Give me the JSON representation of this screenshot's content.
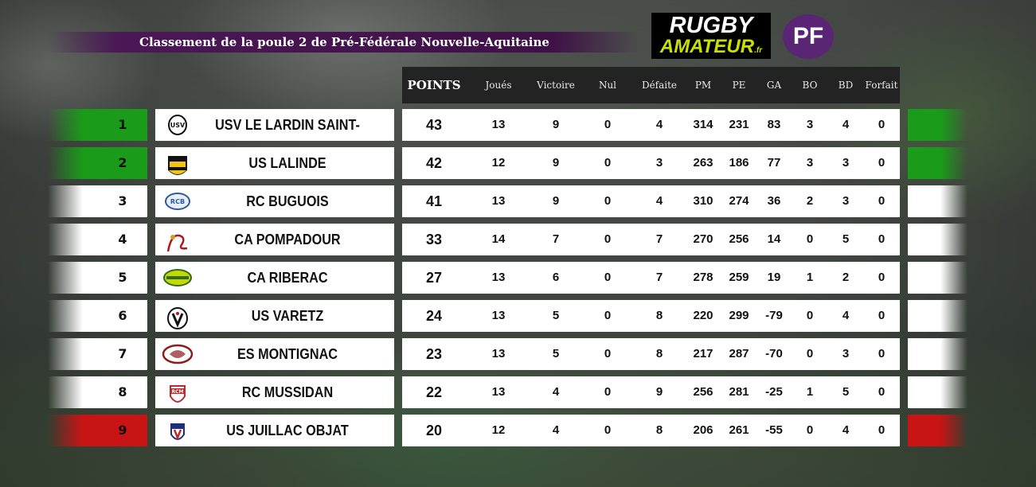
{
  "title": "Classement de la poule 2 de Pré-Fédérale Nouvelle-Aquitaine",
  "logos": {
    "rugby_line1": "RUGBY",
    "rugby_line2": "AMATEUR",
    "rugby_suffix": ".fr",
    "pf": "PF"
  },
  "colors": {
    "green": "#1a9b1a",
    "red": "#c81414",
    "white": "#ffffff",
    "title_bg": "#4b1856",
    "header_bg": "#232323"
  },
  "headers": [
    "POINTS",
    "Joués",
    "Victoire",
    "Nul",
    "Défaite",
    "PM",
    "PE",
    "GA",
    "BO",
    "BD",
    "Forfait"
  ],
  "rows": [
    {
      "rank": "1",
      "team": "USV LE LARDIN SAINT-LAZARE",
      "status": "green",
      "logo": "usv-crest-icon",
      "stats": [
        "43",
        "13",
        "9",
        "0",
        "4",
        "314",
        "231",
        "83",
        "3",
        "4",
        "0"
      ]
    },
    {
      "rank": "2",
      "team": "US LALINDE",
      "status": "green",
      "logo": "us-lalinde-crest-icon",
      "stats": [
        "42",
        "12",
        "9",
        "0",
        "3",
        "263",
        "186",
        "77",
        "3",
        "3",
        "0"
      ]
    },
    {
      "rank": "3",
      "team": "RC BUGUOIS",
      "status": "white",
      "logo": "rcb-ball-icon",
      "stats": [
        "41",
        "13",
        "9",
        "0",
        "4",
        "310",
        "274",
        "36",
        "2",
        "3",
        "0"
      ]
    },
    {
      "rank": "4",
      "team": "CA POMPADOUR",
      "status": "white",
      "logo": "ca-pompadour-icon",
      "stats": [
        "33",
        "14",
        "7",
        "0",
        "7",
        "270",
        "256",
        "14",
        "0",
        "5",
        "0"
      ]
    },
    {
      "rank": "5",
      "team": "CA RIBERAC",
      "status": "white",
      "logo": "ca-riberac-ball-icon",
      "stats": [
        "27",
        "13",
        "6",
        "0",
        "7",
        "278",
        "259",
        "19",
        "1",
        "2",
        "0"
      ]
    },
    {
      "rank": "6",
      "team": "US VARETZ",
      "status": "white",
      "logo": "us-varetz-crest-icon",
      "stats": [
        "24",
        "13",
        "5",
        "0",
        "8",
        "220",
        "299",
        "-79",
        "0",
        "4",
        "0"
      ]
    },
    {
      "rank": "7",
      "team": "ES MONTIGNAC",
      "status": "white",
      "logo": "es-montignac-ball-icon",
      "stats": [
        "23",
        "13",
        "5",
        "0",
        "8",
        "217",
        "287",
        "-70",
        "0",
        "3",
        "0"
      ]
    },
    {
      "rank": "8",
      "team": "RC MUSSIDAN",
      "status": "white",
      "logo": "rcm-crest-icon",
      "stats": [
        "22",
        "13",
        "4",
        "0",
        "9",
        "256",
        "281",
        "-25",
        "1",
        "5",
        "0"
      ]
    },
    {
      "rank": "9",
      "team": "US JUILLAC OBJAT",
      "status": "red",
      "logo": "us-juillac-shield-icon",
      "stats": [
        "20",
        "12",
        "4",
        "0",
        "8",
        "206",
        "261",
        "-55",
        "0",
        "4",
        "0"
      ]
    }
  ]
}
